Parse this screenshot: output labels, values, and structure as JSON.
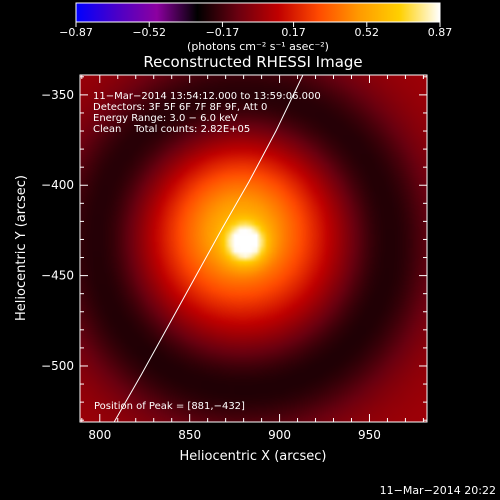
{
  "chart_data": {
    "type": "heatmap",
    "title": "Reconstructed RHESSI Image",
    "xlabel": "Heliocentric X (arcsec)",
    "ylabel": "Heliocentric Y (arcsec)",
    "xlim": [
      789,
      982
    ],
    "ylim": [
      -531,
      -339
    ],
    "xticks": [
      800,
      850,
      900,
      950
    ],
    "yticks": [
      -350,
      -400,
      -450,
      -500
    ],
    "xtick_labels": [
      "800",
      "850",
      "900",
      "950"
    ],
    "ytick_labels": [
      "−350",
      "−400",
      "−450",
      "−500"
    ],
    "colorbar": {
      "range": [
        -0.87,
        0.87
      ],
      "ticks": [
        -0.87,
        -0.52,
        -0.17,
        0.17,
        0.52,
        0.87
      ],
      "tick_labels": [
        "−0.87",
        "−0.52",
        "−0.17",
        "0.17",
        "0.52",
        "0.87"
      ],
      "units_label": "(photons cm⁻² s⁻¹ asec⁻²)",
      "colormap": [
        "#0000ff",
        "#4a00c8",
        "#8c00a0",
        "#000000",
        "#6a0010",
        "#c00000",
        "#ff4a00",
        "#ff9a00",
        "#ffd000",
        "#ffffff"
      ]
    },
    "annotations": [
      "11−Mar−2014 13:54:12.000 to 13:59:06.000",
      "Detectors: 3F 5F 6F 7F 8F 9F, Att 0",
      "Energy Range: 3.0 − 6.0 keV",
      "Clean    Total counts: 2.82E+05"
    ],
    "peak_label": "Position of Peak = [881,−432]",
    "peak": {
      "x": 881,
      "y": -432,
      "value": 0.87
    },
    "image_components": [
      {
        "type": "gaussian",
        "x": 881,
        "y": -432,
        "sigma": 7,
        "amplitude": 0.58
      },
      {
        "type": "gaussian",
        "x": 878,
        "y": -426,
        "sigma": 30,
        "amplitude": 0.55
      },
      {
        "type": "ring",
        "x": 880,
        "y": -432,
        "radius": 80,
        "width": 20,
        "amplitude": -0.26
      },
      {
        "type": "background",
        "amplitude": 0.02
      }
    ],
    "limb_curve": {
      "x": [
        808,
        823,
        838,
        853,
        868,
        883,
        898,
        913
      ],
      "y": [
        -531,
        -505,
        -478,
        -451,
        -424,
        -398,
        -370,
        -339
      ]
    },
    "footer_date": "11−Mar−2014 20:22"
  },
  "colors": {
    "background": "#000000",
    "text": "#ffffff",
    "axis": "#ffffff"
  }
}
